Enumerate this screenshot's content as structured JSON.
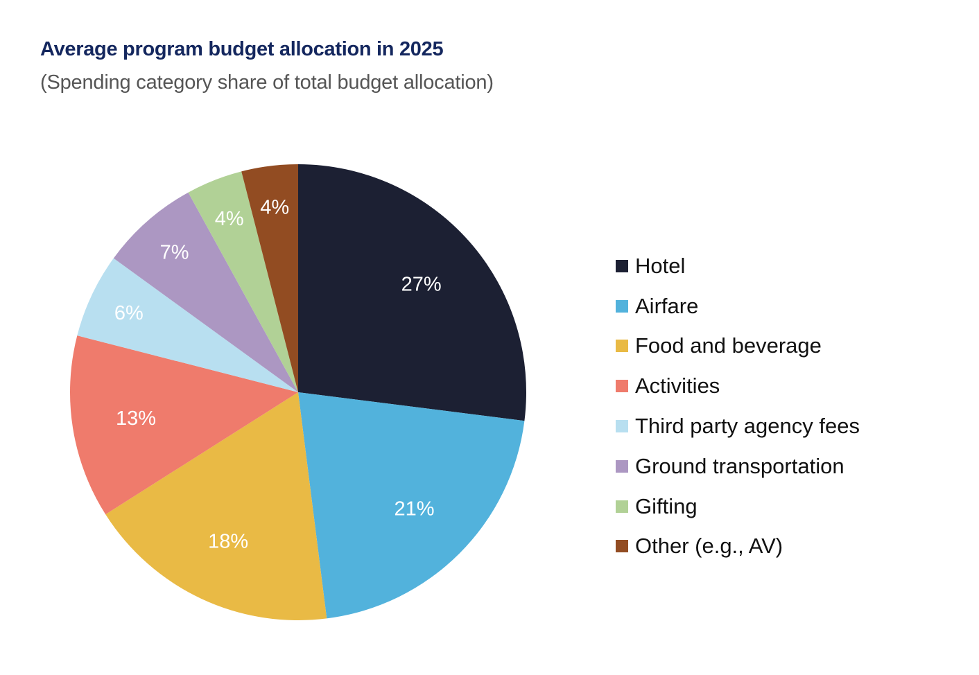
{
  "chart_data": {
    "type": "pie",
    "title": "Average program budget allocation in 2025",
    "subtitle": "(Spending category share of total budget allocation)",
    "unit": "%",
    "start": "top",
    "direction": "clockwise",
    "legend_position": "right",
    "slices": [
      {
        "label": "Hotel",
        "value": 27,
        "display": "27%",
        "color": "#1c2033"
      },
      {
        "label": "Airfare",
        "value": 21,
        "display": "21%",
        "color": "#52b2dc"
      },
      {
        "label": "Food and beverage",
        "value": 18,
        "display": "18%",
        "color": "#e9ba45"
      },
      {
        "label": "Activities",
        "value": 13,
        "display": "13%",
        "color": "#ef7b6c"
      },
      {
        "label": "Third party agency fees",
        "value": 6,
        "display": "6%",
        "color": "#b8dff0"
      },
      {
        "label": "Ground transportation",
        "value": 7,
        "display": "7%",
        "color": "#ac97c2"
      },
      {
        "label": "Gifting",
        "value": 4,
        "display": "4%",
        "color": "#b1d196"
      },
      {
        "label": "Other (e.g., AV)",
        "value": 4,
        "display": "4%",
        "color": "#924c22"
      }
    ]
  }
}
